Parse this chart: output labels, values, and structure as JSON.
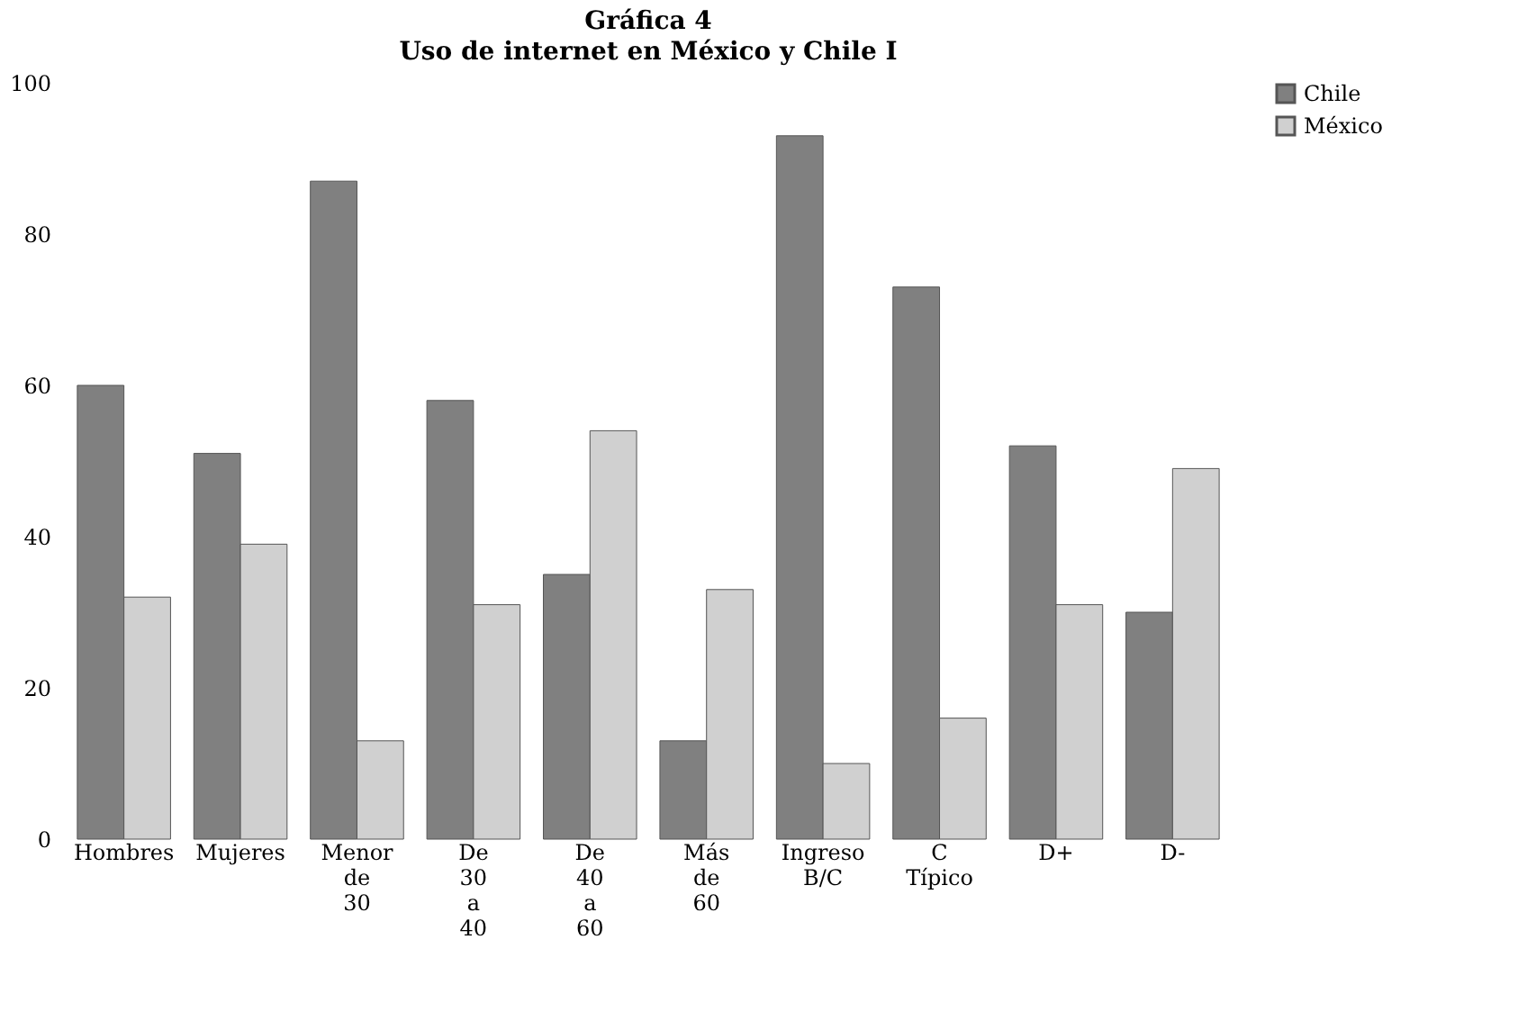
{
  "chart_data": {
    "type": "bar",
    "title": "Gráfica 4",
    "subtitle": "Uso de internet en México y Chile I",
    "categories": [
      "Hombres",
      "Mujeres",
      "Menor de 30",
      "De 30 a 40",
      "De 40 a 60",
      "Más de 60",
      "Ingreso B/C",
      "C Típico",
      "D+",
      "D-"
    ],
    "series": [
      {
        "name": "Chile",
        "color": "#808080",
        "values": [
          60,
          51,
          87,
          58,
          35,
          13,
          93,
          73,
          52,
          30
        ]
      },
      {
        "name": "México",
        "color": "#d0d0d0",
        "values": [
          32,
          39,
          13,
          31,
          54,
          33,
          10,
          16,
          31,
          49
        ]
      }
    ],
    "ylim": [
      0,
      100
    ],
    "yticks": [
      0,
      20,
      40,
      60,
      80,
      100
    ],
    "grid": false,
    "legend": "right"
  }
}
